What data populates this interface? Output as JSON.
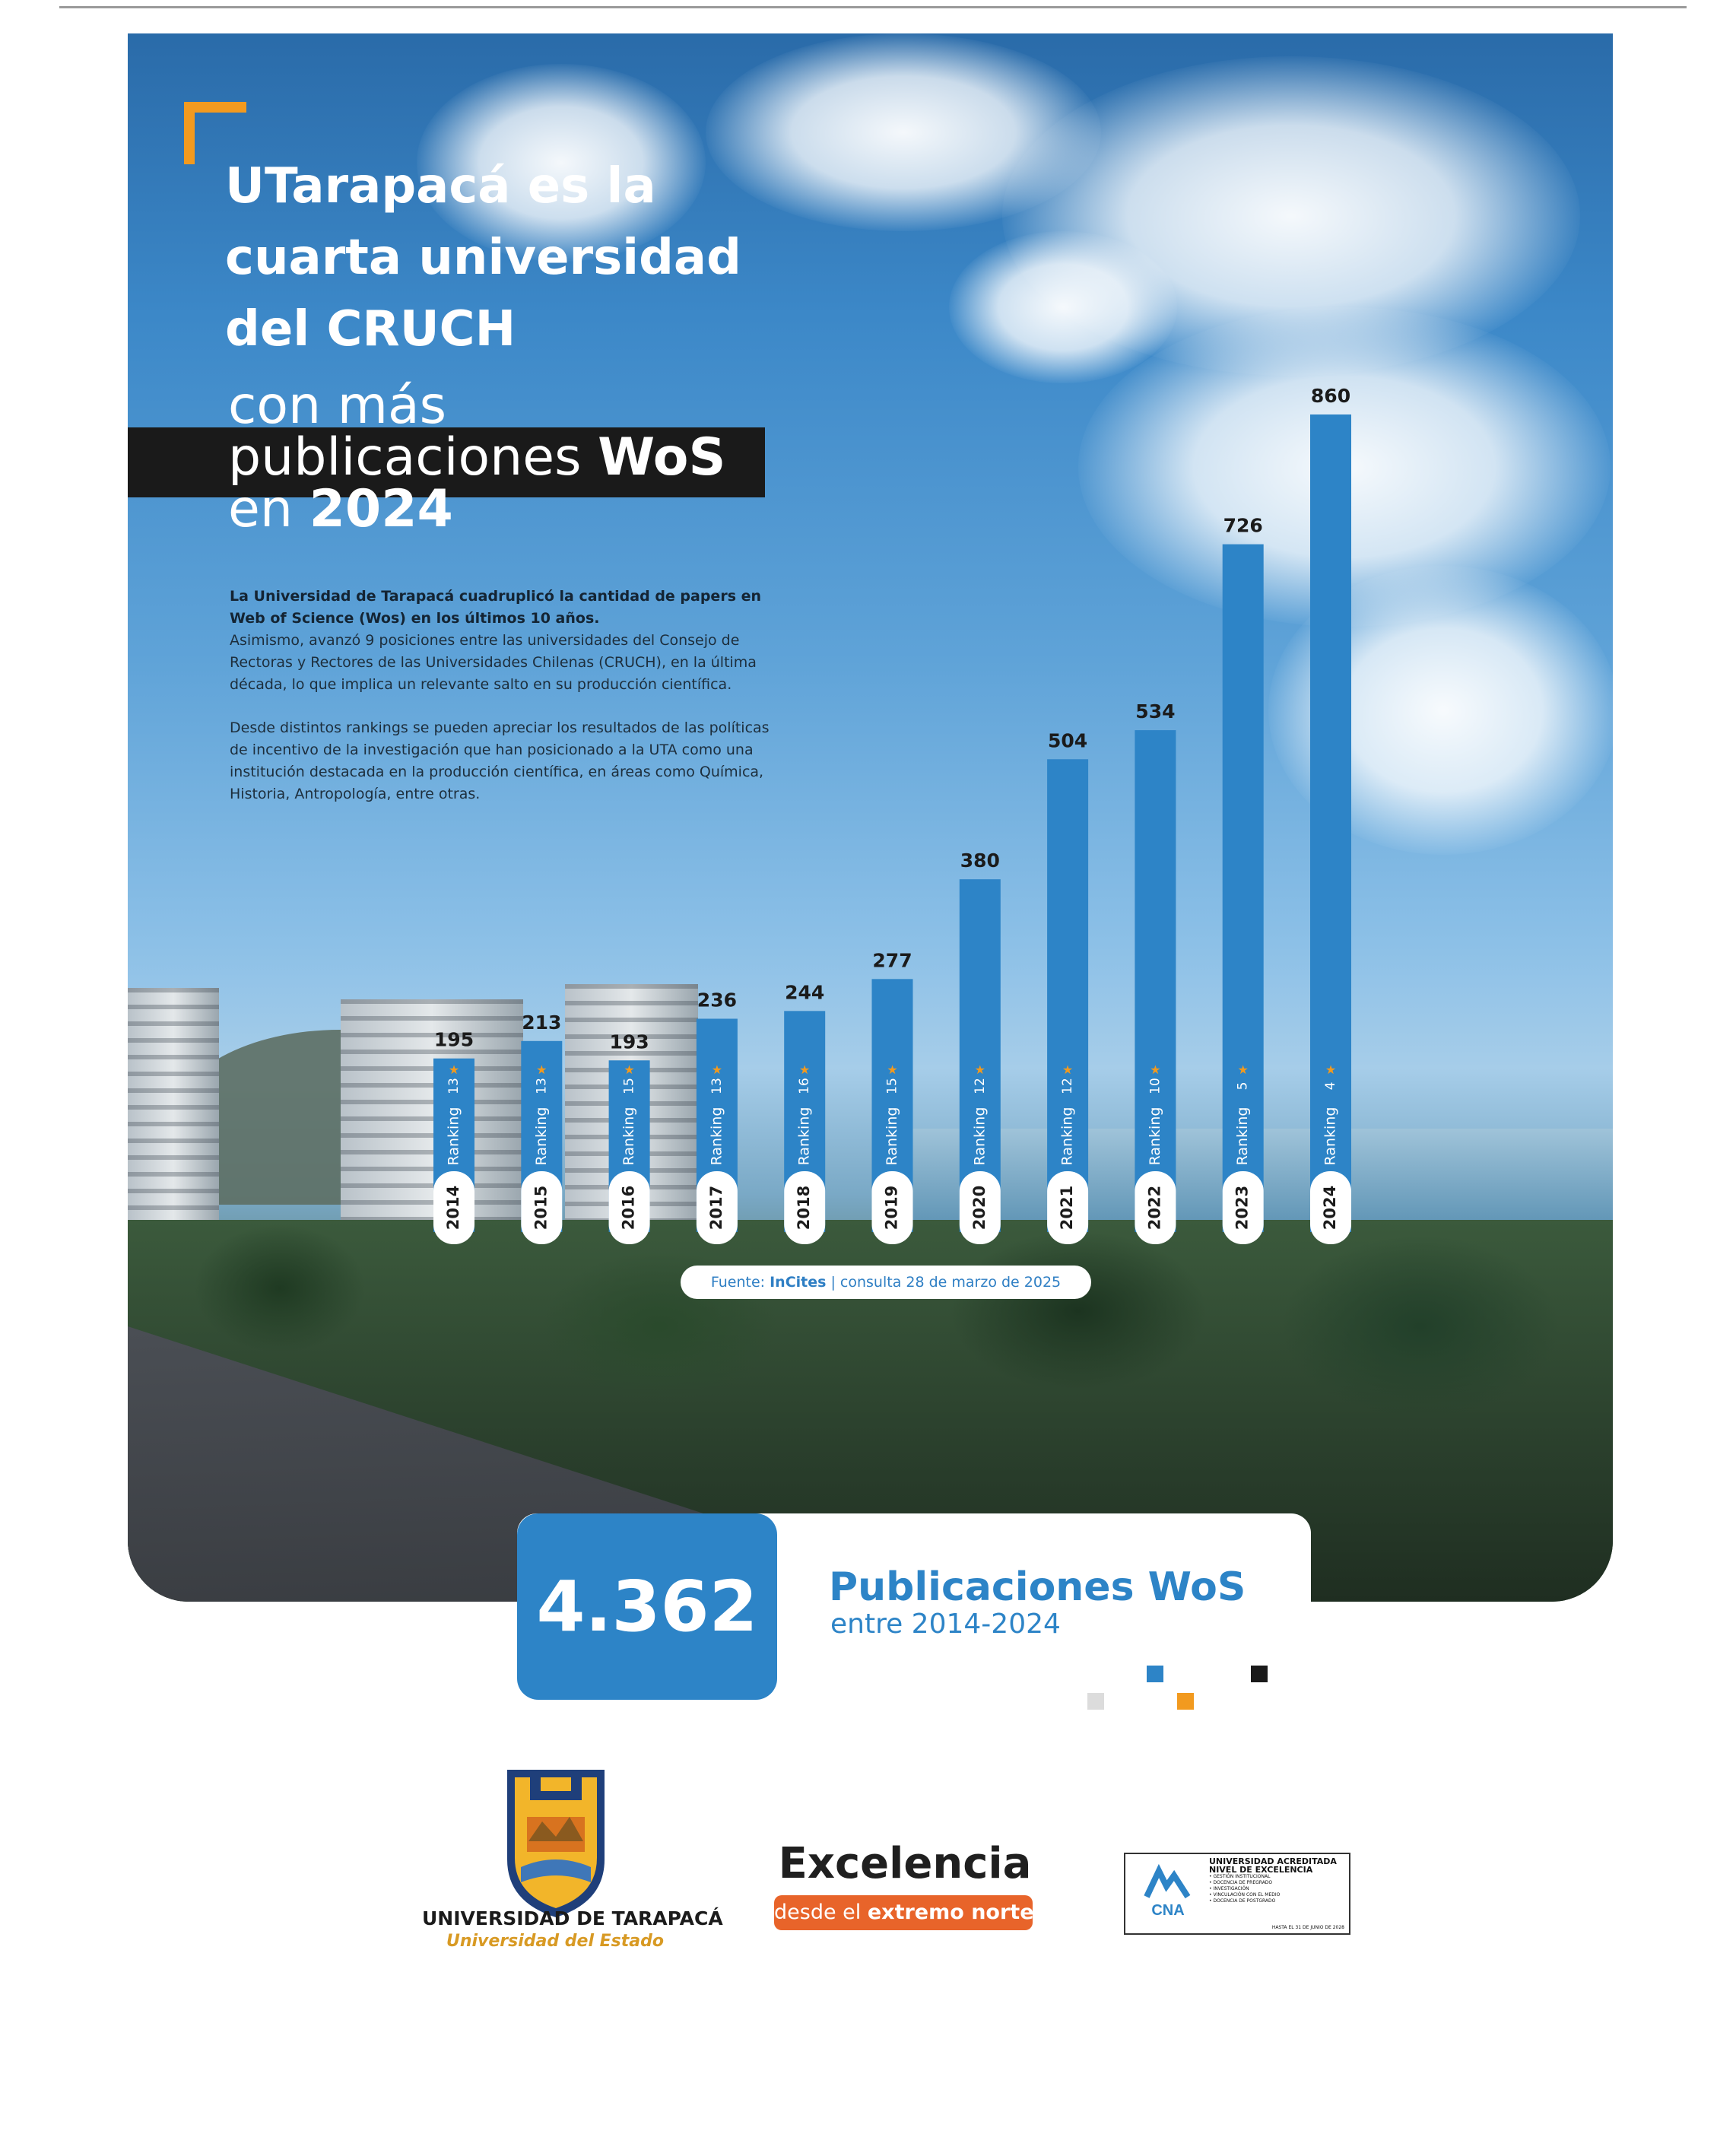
{
  "header": {
    "title_lines": [
      "UTarapacá es la",
      "cuarta universidad",
      "del CRUCH"
    ],
    "subtitle_line1": "con más",
    "subtitle_line2_plain": "publicaciones ",
    "subtitle_line2_bold": "WoS",
    "subtitle_line3_plain": "en ",
    "subtitle_line3_bold": "2024"
  },
  "body": {
    "lead": "La Universidad de Tarapacá cuadruplicó la cantidad de papers en Web of Science (Wos) en los últimos 10 años.",
    "p1": "Asimismo, avanzó 9 posiciones entre las universidades del Consejo de Rectoras y Rectores de las Universidades Chilenas (CRUCH), en la última década, lo que implica un relevante salto en su producción científica.",
    "p2": "Desde distintos rankings se pueden apreciar los resultados de las políticas de incentivo de la investigación que han posicionado a la UTA como una institución destacada en la producción científica, en áreas como Química, Historia, Antropología, entre otras."
  },
  "chart_data": {
    "type": "bar",
    "categories": [
      "2014",
      "2015",
      "2016",
      "2017",
      "2018",
      "2019",
      "2020",
      "2021",
      "2022",
      "2023",
      "2024"
    ],
    "values": [
      195,
      213,
      193,
      236,
      244,
      277,
      380,
      504,
      534,
      726,
      860
    ],
    "ranking_label": "Ranking",
    "ranking": [
      13,
      13,
      15,
      13,
      16,
      15,
      12,
      12,
      10,
      5,
      4
    ],
    "ylim": [
      0,
      860
    ],
    "bar_color": "#2d84c7",
    "star_color": "#f29a1f"
  },
  "source": {
    "prefix": "Fuente: ",
    "name": "InCites",
    "rest": " | consulta 28 de marzo de 2025"
  },
  "total": {
    "value": "4.362",
    "label": "Publicaciones WoS",
    "sub": "entre 2014-2024"
  },
  "colors": {
    "accent_blue": "#2d84c7",
    "accent_orange": "#f29a1f",
    "square_grey": "#dcdcdc",
    "square_black": "#1a1a1a"
  },
  "footer": {
    "uta_name": "UNIVERSIDAD DE TARAPACÁ",
    "uta_sub": "Universidad del Estado",
    "excellence_title": "Excelencia",
    "excellence_pill_plain": "desde el ",
    "excellence_pill_bold": "extremo norte",
    "cna_logo_text": "CNA",
    "cna_title1": "UNIVERSIDAD ACREDITADA",
    "cna_title2": "NIVEL DE EXCELENCIA",
    "cna_items": [
      "• GESTIÓN INSTITUCIONAL",
      "• DOCENCIA DE PREGRADO",
      "• INVESTIGACIÓN",
      "• VINCULACIÓN CON EL MEDIO",
      "• DOCENCIA DE POSTGRADO"
    ],
    "cna_until": "HASTA EL 31 DE JUNIO DE 2028"
  }
}
